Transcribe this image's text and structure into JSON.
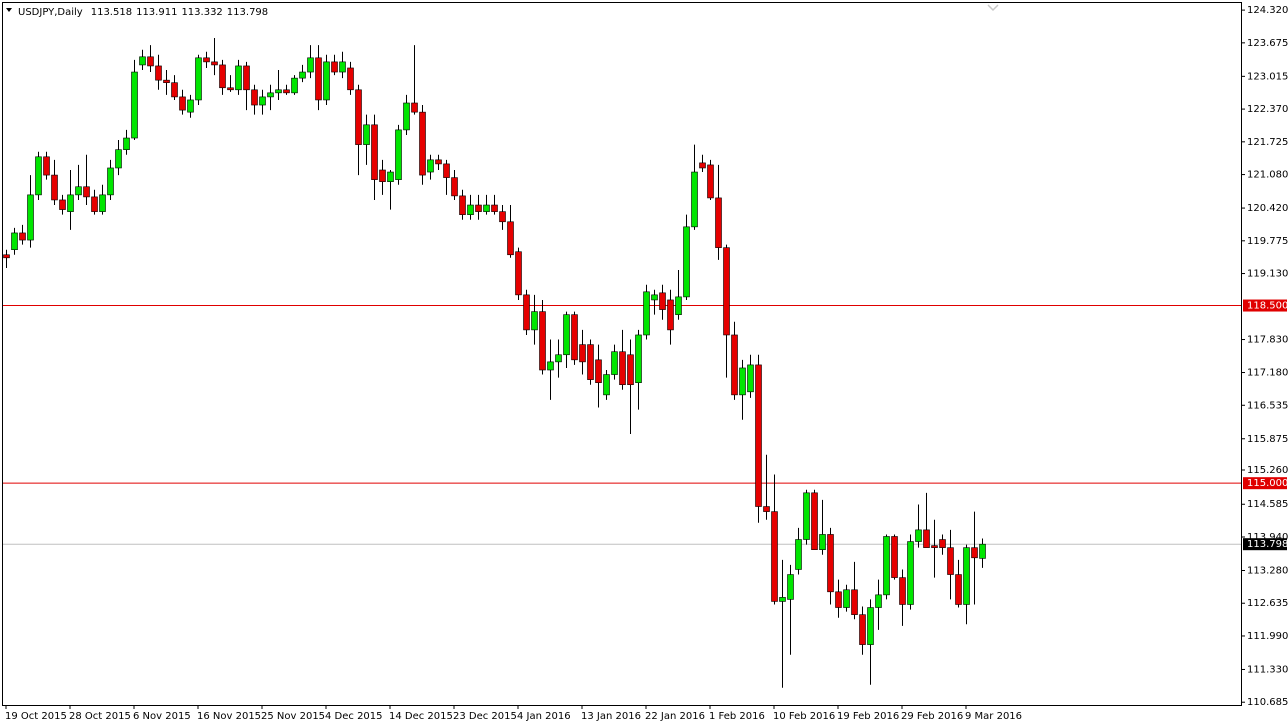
{
  "chart_data": {
    "type": "candlestick",
    "title": "USDJPY,Daily",
    "header_values": [
      113.518,
      113.911,
      113.332,
      113.798
    ],
    "categories": [
      "19 Oct 2015",
      null,
      null,
      null,
      null,
      null,
      null,
      null,
      "28 Oct 2015",
      null,
      null,
      null,
      null,
      null,
      null,
      null,
      "6 Nov 2015",
      null,
      null,
      null,
      null,
      null,
      null,
      null,
      "16 Nov 2015",
      null,
      null,
      null,
      null,
      null,
      null,
      null,
      "25 Nov 2015",
      null,
      null,
      null,
      null,
      null,
      null,
      null,
      "4 Dec 2015",
      null,
      null,
      null,
      null,
      null,
      null,
      null,
      "14 Dec 2015",
      null,
      null,
      null,
      null,
      null,
      null,
      null,
      "23 Dec 2015",
      null,
      null,
      null,
      null,
      null,
      null,
      null,
      "4 Jan 2016",
      null,
      null,
      null,
      null,
      null,
      null,
      null,
      "13 Jan 2016",
      null,
      null,
      null,
      null,
      null,
      null,
      null,
      "22 Jan 2016",
      null,
      null,
      null,
      null,
      null,
      null,
      null,
      "1 Feb 2016",
      null,
      null,
      null,
      null,
      null,
      null,
      null,
      "10 Feb 2016",
      null,
      null,
      null,
      null,
      null,
      null,
      null,
      "19 Feb 2016",
      null,
      null,
      null,
      null,
      null,
      null,
      null,
      "29 Feb 2016",
      null,
      null,
      null,
      null,
      null,
      null,
      null,
      "9 Mar 2016",
      null,
      null
    ],
    "open": [
      119.5,
      119.6,
      119.93,
      119.79,
      120.68,
      121.43,
      121.07,
      120.58,
      120.35,
      120.68,
      120.84,
      120.64,
      120.35,
      120.68,
      121.21,
      121.57,
      121.8,
      123.24,
      123.4,
      123.22,
      122.94,
      122.89,
      122.61,
      122.31,
      122.55,
      123.38,
      123.3,
      123.24,
      122.79,
      122.75,
      123.22,
      122.75,
      122.45,
      122.61,
      122.69,
      122.75,
      122.69,
      122.98,
      123.1,
      123.38,
      122.55,
      123.3,
      123.1,
      123.18,
      122.75,
      121.67,
      122.06,
      121.17,
      120.94,
      120.98,
      121.96,
      122.49,
      122.31,
      121.13,
      121.37,
      121.29,
      121.02,
      120.66,
      120.29,
      120.48,
      120.35,
      120.48,
      120.35,
      120.15,
      119.56,
      118.71,
      118.02,
      118.38,
      117.23,
      117.39,
      117.53,
      118.32,
      117.73,
      117.73,
      117.43,
      116.74,
      117.14,
      117.59,
      117.53,
      116.98,
      117.92,
      118.61,
      118.75,
      118.61,
      118.32,
      118.67,
      120.05,
      121.31,
      121.27,
      120.62,
      119.64,
      117.92,
      116.74,
      116.8,
      117.33,
      114.54,
      114.44,
      112.67,
      112.71,
      113.3,
      113.89,
      114.81,
      113.69,
      113.99,
      112.86,
      112.55,
      112.9,
      112.41,
      111.82,
      112.55,
      112.8,
      113.95,
      113.14,
      112.61,
      113.85,
      114.08,
      113.77,
      113.89,
      113.73,
      113.2,
      112.61,
      113.73,
      113.518
    ],
    "high": [
      119.6,
      120.03,
      120.09,
      121.07,
      121.53,
      121.53,
      121.37,
      120.68,
      121.17,
      121.27,
      121.47,
      120.78,
      120.88,
      121.37,
      121.76,
      121.96,
      123.34,
      123.54,
      123.63,
      123.44,
      123.14,
      123.04,
      122.75,
      122.65,
      123.44,
      123.5,
      123.77,
      123.34,
      123.04,
      123.34,
      123.3,
      122.85,
      122.75,
      122.85,
      123.14,
      122.85,
      123.04,
      123.24,
      123.63,
      123.63,
      123.44,
      123.44,
      123.5,
      123.3,
      122.85,
      122.26,
      122.26,
      121.37,
      121.17,
      122.06,
      122.65,
      123.63,
      122.45,
      121.47,
      121.47,
      121.37,
      121.17,
      120.78,
      120.68,
      120.68,
      120.68,
      120.68,
      120.48,
      120.48,
      119.64,
      118.81,
      118.71,
      118.61,
      117.83,
      117.83,
      118.38,
      118.38,
      118.02,
      117.83,
      117.73,
      117.23,
      117.73,
      118.02,
      117.83,
      118.02,
      118.91,
      118.81,
      118.91,
      118.81,
      119.2,
      120.29,
      121.67,
      121.47,
      121.37,
      121.27,
      119.7,
      118.18,
      117.43,
      117.53,
      117.53,
      115.56,
      115.17,
      113.49,
      113.39,
      114.12,
      114.87,
      114.87,
      114.67,
      114.12,
      113.1,
      113.0,
      113.45,
      112.57,
      112.71,
      113.1,
      113.99,
      113.99,
      113.3,
      113.99,
      114.58,
      114.81,
      114.28,
      113.99,
      114.08,
      113.49,
      113.79,
      114.44,
      113.911
    ],
    "low": [
      119.24,
      119.5,
      119.7,
      119.64,
      120.58,
      120.98,
      120.48,
      120.29,
      119.99,
      120.58,
      120.48,
      120.29,
      120.29,
      120.58,
      121.07,
      121.47,
      121.76,
      123.14,
      123.1,
      122.75,
      122.65,
      122.55,
      122.26,
      122.2,
      122.45,
      123.18,
      123.04,
      122.65,
      122.71,
      122.65,
      122.35,
      122.26,
      122.26,
      122.35,
      122.55,
      122.65,
      122.65,
      122.9,
      122.98,
      122.35,
      122.45,
      123.04,
      122.98,
      122.65,
      121.07,
      121.27,
      120.58,
      120.68,
      120.39,
      120.88,
      121.86,
      122.26,
      120.88,
      120.98,
      121.17,
      120.68,
      120.58,
      120.19,
      120.19,
      120.19,
      120.29,
      120.29,
      119.99,
      119.44,
      118.61,
      117.92,
      117.73,
      117.14,
      116.64,
      117.08,
      117.27,
      117.33,
      117.14,
      116.94,
      116.49,
      116.64,
      117.04,
      116.84,
      115.97,
      116.45,
      117.83,
      118.32,
      118.22,
      117.73,
      118.22,
      118.61,
      119.99,
      121.13,
      120.58,
      119.4,
      117.08,
      116.64,
      116.25,
      116.68,
      114.22,
      114.28,
      112.61,
      110.97,
      111.62,
      113.2,
      113.79,
      113.69,
      113.59,
      112.61,
      112.35,
      112.47,
      112.32,
      111.62,
      111.03,
      112.11,
      112.71,
      113.1,
      112.19,
      112.51,
      113.73,
      113.79,
      113.14,
      113.59,
      112.71,
      112.55,
      112.22,
      112.61,
      113.332
    ],
    "close": [
      119.44,
      119.93,
      119.79,
      120.68,
      121.43,
      121.07,
      120.58,
      120.39,
      120.68,
      120.84,
      120.64,
      120.35,
      120.68,
      121.21,
      121.57,
      121.8,
      123.1,
      123.4,
      123.22,
      122.94,
      122.89,
      122.61,
      122.35,
      122.55,
      123.38,
      123.3,
      123.24,
      122.79,
      122.75,
      123.22,
      122.75,
      122.45,
      122.61,
      122.69,
      122.75,
      122.69,
      122.98,
      123.1,
      123.38,
      122.55,
      123.3,
      123.1,
      123.3,
      122.75,
      121.67,
      122.06,
      120.98,
      120.94,
      121.13,
      121.96,
      122.49,
      122.31,
      121.07,
      121.37,
      121.29,
      121.02,
      120.66,
      120.29,
      120.48,
      120.35,
      120.48,
      120.35,
      120.15,
      119.5,
      118.71,
      118.02,
      118.38,
      117.23,
      117.39,
      117.53,
      118.32,
      117.43,
      117.39,
      117.04,
      116.98,
      117.14,
      117.59,
      116.94,
      116.94,
      117.92,
      118.77,
      118.71,
      118.42,
      118.02,
      118.67,
      120.05,
      121.13,
      121.21,
      120.62,
      119.64,
      117.92,
      116.74,
      117.27,
      117.33,
      114.54,
      114.44,
      112.67,
      112.75,
      113.2,
      113.89,
      114.81,
      113.69,
      113.99,
      112.86,
      112.55,
      112.9,
      112.41,
      111.82,
      112.55,
      112.8,
      113.95,
      113.14,
      112.61,
      113.85,
      114.08,
      113.73,
      113.73,
      113.73,
      113.2,
      112.61,
      113.73,
      113.53,
      113.798
    ],
    "up_color": "#00e600",
    "down_color": "#e60000",
    "wick_color": "#000000",
    "ylim": [
      110.63,
      124.46
    ],
    "yticks": [
      {
        "value": 124.32,
        "label": "124.320"
      },
      {
        "value": 123.675,
        "label": "123.675"
      },
      {
        "value": 123.015,
        "label": "123.015"
      },
      {
        "value": 122.37,
        "label": "122.370"
      },
      {
        "value": 121.725,
        "label": "121.725"
      },
      {
        "value": 121.08,
        "label": "121.080"
      },
      {
        "value": 120.42,
        "label": "120.420"
      },
      {
        "value": 119.775,
        "label": "119.775"
      },
      {
        "value": 119.13,
        "label": "119.130"
      },
      {
        "value": 117.83,
        "label": "117.830"
      },
      {
        "value": 117.18,
        "label": "117.180"
      },
      {
        "value": 116.535,
        "label": "116.535"
      },
      {
        "value": 115.875,
        "label": "115.875"
      },
      {
        "value": 115.26,
        "label": "115.260"
      },
      {
        "value": 114.585,
        "label": "114.585"
      },
      {
        "value": 113.94,
        "label": "113.940"
      },
      {
        "value": 113.28,
        "label": "113.280"
      },
      {
        "value": 112.635,
        "label": "112.635"
      },
      {
        "value": 111.99,
        "label": "111.990"
      },
      {
        "value": 111.33,
        "label": "111.330"
      },
      {
        "value": 110.685,
        "label": "110.685"
      }
    ],
    "hlines": [
      {
        "value": 118.5,
        "label": "118.500",
        "color": "#e00000"
      },
      {
        "value": 115.0,
        "label": "115.000",
        "color": "#e00000"
      }
    ],
    "current_price": 113.798,
    "current_price_color": "#c0c0c0"
  }
}
